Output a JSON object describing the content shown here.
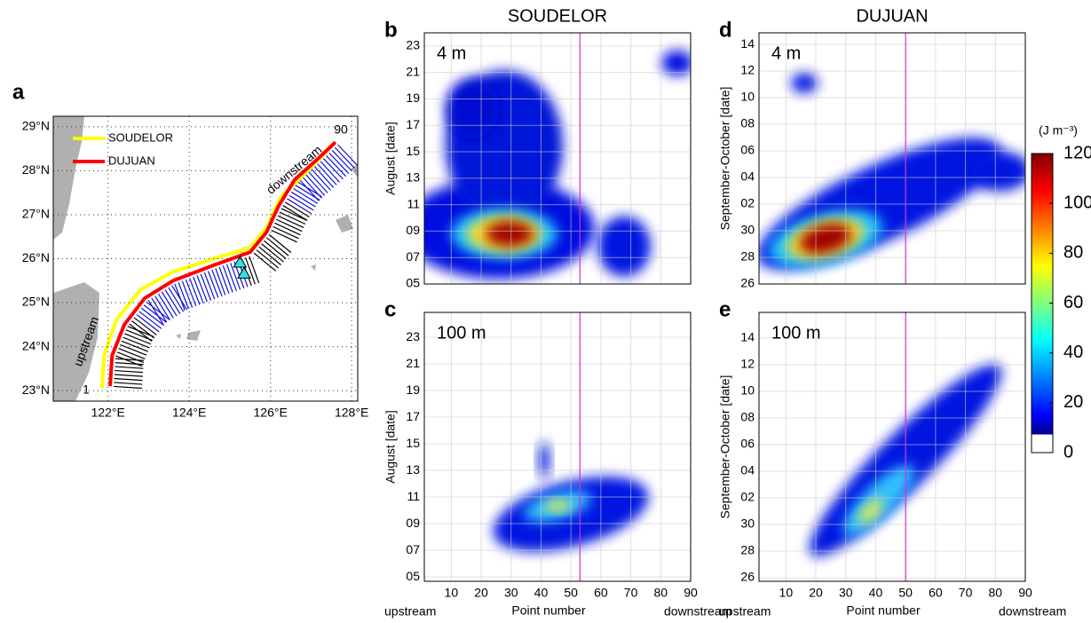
{
  "chart_data": [
    {
      "type": "map",
      "panel_label": "a",
      "xlim": [
        120.65,
        128.15
      ],
      "ylim": [
        22.76,
        29.24
      ],
      "xticks": [
        {
          "value": 122,
          "label": "122°E"
        },
        {
          "value": 124,
          "label": "124°E"
        },
        {
          "value": 126,
          "label": "126°E"
        },
        {
          "value": 128,
          "label": "128°E"
        }
      ],
      "yticks": [
        {
          "value": 23,
          "label": "23°N"
        },
        {
          "value": 24,
          "label": "24°N"
        },
        {
          "value": 25,
          "label": "25°N"
        },
        {
          "value": 26,
          "label": "26°N"
        },
        {
          "value": 27,
          "label": "27°N"
        },
        {
          "value": 28,
          "label": "28°N"
        },
        {
          "value": 29,
          "label": "29°N"
        }
      ],
      "grid": true,
      "series": [
        {
          "name": "SOUDELOR",
          "color": "#ffff00",
          "x": [
            121.85,
            121.9,
            122.2,
            122.8,
            123.6,
            124.6,
            125.5,
            125.9,
            126.25,
            126.8,
            127.5
          ],
          "y": [
            23.05,
            23.8,
            24.6,
            25.3,
            25.7,
            26.0,
            26.25,
            26.7,
            27.4,
            27.9,
            28.55
          ]
        },
        {
          "name": "DUJUAN",
          "color": "#ff0000",
          "x": [
            122.05,
            122.1,
            122.4,
            122.9,
            123.6,
            124.6,
            125.5,
            125.9,
            126.2,
            126.6,
            127.2,
            127.6
          ],
          "y": [
            23.1,
            23.8,
            24.5,
            25.1,
            25.5,
            25.85,
            26.15,
            26.6,
            27.2,
            27.8,
            28.3,
            28.65
          ]
        }
      ],
      "annotations": [
        "upstream",
        "downstream",
        "1",
        "90"
      ]
    },
    {
      "type": "heatmap",
      "panel_label": "b",
      "title": "SOUDELOR",
      "depth": "4 m",
      "y_label": "August [date]",
      "xlim": [
        1,
        90
      ],
      "xticks": [
        10,
        20,
        30,
        40,
        50,
        60,
        70,
        80,
        90
      ],
      "show_xtick_labels": false,
      "ylim": [
        5,
        24
      ],
      "yticks": [
        {
          "value": 5,
          "label": "05"
        },
        {
          "value": 7,
          "label": "07"
        },
        {
          "value": 9,
          "label": "09"
        },
        11,
        13,
        15,
        17,
        19,
        21,
        23
      ],
      "vline": 53,
      "grid": true
    },
    {
      "type": "heatmap",
      "panel_label": "c",
      "depth": "100 m",
      "y_label": "August [date]",
      "x_label": "Point number",
      "x_end_labels": [
        "upstream",
        "downstream"
      ],
      "xlim": [
        1,
        90
      ],
      "xticks": [
        10,
        20,
        30,
        40,
        50,
        60,
        70,
        80,
        90
      ],
      "show_xtick_labels": true,
      "ylim": [
        4.67,
        24.87
      ],
      "yticks": [
        {
          "value": 5,
          "label": "05"
        },
        {
          "value": 7,
          "label": "07"
        },
        {
          "value": 9,
          "label": "09"
        },
        11,
        13,
        15,
        17,
        19,
        21,
        23
      ],
      "vline": 53,
      "grid": true
    },
    {
      "type": "heatmap",
      "panel_label": "d",
      "title": "DUJUAN",
      "depth": "4 m",
      "y_label": "September-October [date]",
      "xlim": [
        1,
        90
      ],
      "xticks": [
        10,
        20,
        30,
        40,
        50,
        60,
        70,
        80,
        90
      ],
      "show_xtick_labels": false,
      "ylim": [
        26,
        44.87
      ],
      "yticks": [
        26,
        28,
        30,
        {
          "value": 32,
          "label": "02"
        },
        {
          "value": 34,
          "label": "04"
        },
        {
          "value": 36,
          "label": "06"
        },
        {
          "value": 38,
          "label": "08"
        },
        {
          "value": 40,
          "label": "10"
        },
        {
          "value": 42,
          "label": "12"
        },
        {
          "value": 44,
          "label": "14"
        }
      ],
      "vline": 50,
      "grid": true
    },
    {
      "type": "heatmap",
      "panel_label": "e",
      "depth": "100 m",
      "y_label": "September-October [date]",
      "x_label": "Point number",
      "x_end_labels": [
        "upstream",
        "downstream"
      ],
      "xlim": [
        1,
        90
      ],
      "xticks": [
        10,
        20,
        30,
        40,
        50,
        60,
        70,
        80,
        90
      ],
      "show_xtick_labels": true,
      "ylim": [
        25.73,
        45.93
      ],
      "yticks": [
        26,
        28,
        30,
        {
          "value": 32,
          "label": "02"
        },
        {
          "value": 34,
          "label": "04"
        },
        {
          "value": 36,
          "label": "06"
        },
        {
          "value": 38,
          "label": "08"
        },
        {
          "value": 40,
          "label": "10"
        },
        {
          "value": 42,
          "label": "12"
        },
        {
          "value": 44,
          "label": "14"
        }
      ],
      "vline": 50,
      "grid": true
    },
    {
      "type": "colorbar",
      "label": "(J m⁻³)",
      "ylim": [
        0,
        120
      ],
      "yticks": [
        0,
        20,
        40,
        60,
        80,
        100,
        120
      ]
    }
  ]
}
